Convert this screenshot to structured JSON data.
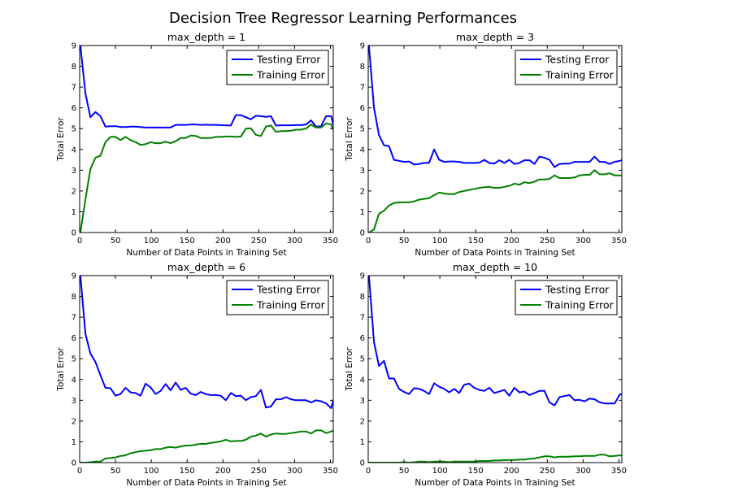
{
  "figure": {
    "suptitle": "Decision Tree Regressor Learning Performances"
  },
  "colors": {
    "testing": "#0000ff",
    "training": "#008000",
    "axes": "#000000",
    "background": "#ffffff"
  },
  "chart_data": [
    {
      "type": "line",
      "title": "max_depth = 1",
      "xlabel": "Number of Data Points in Training Set",
      "ylabel": "Total Error",
      "xlim": [
        0,
        354
      ],
      "ylim": [
        0,
        9
      ],
      "xticks": [
        0,
        50,
        100,
        150,
        200,
        250,
        300,
        350
      ],
      "yticks": [
        0,
        1,
        2,
        3,
        4,
        5,
        6,
        7,
        8,
        9
      ],
      "legend": "top-right",
      "x": [
        1,
        8,
        15,
        22,
        29,
        36,
        43,
        50,
        57,
        64,
        71,
        78,
        85,
        92,
        99,
        106,
        113,
        120,
        127,
        134,
        141,
        148,
        155,
        162,
        169,
        176,
        183,
        190,
        197,
        204,
        211,
        218,
        225,
        232,
        239,
        246,
        253,
        260,
        267,
        274,
        281,
        288,
        295,
        302,
        309,
        316,
        323,
        330,
        337,
        344,
        351,
        354
      ],
      "series": [
        {
          "name": "Testing Error",
          "values": [
            9.0,
            6.7,
            5.55,
            5.8,
            5.6,
            5.1,
            5.12,
            5.12,
            5.08,
            5.08,
            5.1,
            5.1,
            5.08,
            5.05,
            5.05,
            5.06,
            5.05,
            5.05,
            5.05,
            5.18,
            5.18,
            5.18,
            5.2,
            5.2,
            5.18,
            5.19,
            5.18,
            5.18,
            5.17,
            5.16,
            5.15,
            5.65,
            5.65,
            5.55,
            5.45,
            5.62,
            5.6,
            5.57,
            5.6,
            5.15,
            5.16,
            5.16,
            5.16,
            5.17,
            5.17,
            5.2,
            5.4,
            5.1,
            5.12,
            5.6,
            5.6,
            5.2
          ]
        },
        {
          "name": "Training Error",
          "values": [
            0.0,
            1.6,
            3.05,
            3.6,
            3.7,
            4.35,
            4.6,
            4.6,
            4.45,
            4.6,
            4.45,
            4.35,
            4.22,
            4.25,
            4.35,
            4.3,
            4.3,
            4.37,
            4.3,
            4.4,
            4.55,
            4.55,
            4.67,
            4.65,
            4.55,
            4.55,
            4.55,
            4.6,
            4.6,
            4.62,
            4.62,
            4.6,
            4.62,
            5.0,
            5.02,
            4.7,
            4.65,
            5.1,
            5.15,
            4.85,
            4.88,
            4.88,
            4.9,
            4.95,
            4.95,
            5.0,
            5.2,
            5.05,
            5.05,
            5.25,
            5.2,
            4.95
          ]
        }
      ]
    },
    {
      "type": "line",
      "title": "max_depth = 3",
      "xlabel": "Number of Data Points in Training Set",
      "ylabel": "Total Error",
      "xlim": [
        0,
        354
      ],
      "ylim": [
        0,
        9
      ],
      "xticks": [
        0,
        50,
        100,
        150,
        200,
        250,
        300,
        350
      ],
      "yticks": [
        0,
        1,
        2,
        3,
        4,
        5,
        6,
        7,
        8,
        9
      ],
      "legend": "top-right",
      "x": [
        1,
        8,
        15,
        22,
        29,
        36,
        43,
        50,
        57,
        64,
        71,
        78,
        85,
        92,
        99,
        106,
        113,
        120,
        127,
        134,
        141,
        148,
        155,
        162,
        169,
        176,
        183,
        190,
        197,
        204,
        211,
        218,
        225,
        232,
        239,
        246,
        253,
        260,
        267,
        274,
        281,
        288,
        295,
        302,
        309,
        316,
        323,
        330,
        337,
        344,
        351,
        354
      ],
      "series": [
        {
          "name": "Testing Error",
          "values": [
            9.0,
            6.0,
            4.7,
            4.2,
            4.15,
            3.5,
            3.45,
            3.4,
            3.42,
            3.28,
            3.3,
            3.35,
            3.35,
            4.0,
            3.5,
            3.4,
            3.42,
            3.42,
            3.4,
            3.35,
            3.35,
            3.35,
            3.36,
            3.5,
            3.35,
            3.32,
            3.48,
            3.35,
            3.5,
            3.3,
            3.35,
            3.48,
            3.48,
            3.3,
            3.65,
            3.6,
            3.5,
            3.15,
            3.3,
            3.32,
            3.32,
            3.4,
            3.4,
            3.4,
            3.4,
            3.65,
            3.4,
            3.4,
            3.3,
            3.4,
            3.45,
            3.48
          ]
        },
        {
          "name": "Training Error",
          "values": [
            0.0,
            0.15,
            0.9,
            1.05,
            1.3,
            1.42,
            1.45,
            1.45,
            1.45,
            1.5,
            1.58,
            1.62,
            1.65,
            1.8,
            1.92,
            1.88,
            1.85,
            1.85,
            1.95,
            2.0,
            2.05,
            2.1,
            2.15,
            2.18,
            2.2,
            2.15,
            2.15,
            2.2,
            2.25,
            2.35,
            2.3,
            2.42,
            2.38,
            2.45,
            2.55,
            2.55,
            2.58,
            2.75,
            2.62,
            2.62,
            2.62,
            2.65,
            2.75,
            2.78,
            2.78,
            3.0,
            2.8,
            2.8,
            2.85,
            2.75,
            2.75,
            2.75
          ]
        }
      ]
    },
    {
      "type": "line",
      "title": "max_depth = 6",
      "xlabel": "Number of Data Points in Training Set",
      "ylabel": "Total Error",
      "xlim": [
        0,
        354
      ],
      "ylim": [
        0,
        9
      ],
      "xticks": [
        0,
        50,
        100,
        150,
        200,
        250,
        300,
        350
      ],
      "yticks": [
        0,
        1,
        2,
        3,
        4,
        5,
        6,
        7,
        8,
        9
      ],
      "legend": "top-right",
      "x": [
        1,
        8,
        15,
        22,
        29,
        36,
        43,
        50,
        57,
        64,
        71,
        78,
        85,
        92,
        99,
        106,
        113,
        120,
        127,
        134,
        141,
        148,
        155,
        162,
        169,
        176,
        183,
        190,
        197,
        204,
        211,
        218,
        225,
        232,
        239,
        246,
        253,
        260,
        267,
        274,
        281,
        288,
        295,
        302,
        309,
        316,
        323,
        330,
        337,
        344,
        351,
        354
      ],
      "series": [
        {
          "name": "Testing Error",
          "values": [
            9.0,
            6.2,
            5.25,
            4.85,
            4.2,
            3.6,
            3.58,
            3.22,
            3.3,
            3.6,
            3.38,
            3.35,
            3.22,
            3.8,
            3.62,
            3.3,
            3.45,
            3.78,
            3.48,
            3.85,
            3.5,
            3.6,
            3.32,
            3.25,
            3.4,
            3.3,
            3.25,
            3.25,
            3.22,
            3.0,
            3.35,
            3.2,
            3.22,
            3.0,
            3.15,
            3.2,
            3.5,
            2.65,
            2.7,
            3.05,
            3.05,
            3.15,
            3.05,
            3.0,
            3.0,
            3.0,
            2.9,
            3.0,
            2.95,
            2.85,
            2.62,
            3.0
          ]
        },
        {
          "name": "Training Error",
          "values": [
            0.0,
            0.0,
            0.02,
            0.05,
            0.05,
            0.2,
            0.22,
            0.25,
            0.32,
            0.35,
            0.45,
            0.5,
            0.55,
            0.57,
            0.6,
            0.65,
            0.65,
            0.72,
            0.75,
            0.72,
            0.78,
            0.82,
            0.82,
            0.87,
            0.9,
            0.9,
            0.95,
            0.98,
            1.02,
            1.1,
            1.02,
            1.04,
            1.04,
            1.1,
            1.25,
            1.3,
            1.4,
            1.25,
            1.35,
            1.4,
            1.38,
            1.38,
            1.42,
            1.45,
            1.5,
            1.5,
            1.4,
            1.55,
            1.55,
            1.42,
            1.5,
            1.55
          ]
        }
      ]
    },
    {
      "type": "line",
      "title": "max_depth = 10",
      "xlabel": "Number of Data Points in Training Set",
      "ylabel": "Total Error",
      "xlim": [
        0,
        354
      ],
      "ylim": [
        0,
        9
      ],
      "xticks": [
        0,
        50,
        100,
        150,
        200,
        250,
        300,
        350
      ],
      "yticks": [
        0,
        1,
        2,
        3,
        4,
        5,
        6,
        7,
        8,
        9
      ],
      "legend": "top-right",
      "x": [
        1,
        8,
        15,
        22,
        29,
        36,
        43,
        50,
        57,
        64,
        71,
        78,
        85,
        92,
        99,
        106,
        113,
        120,
        127,
        134,
        141,
        148,
        155,
        162,
        169,
        176,
        183,
        190,
        197,
        204,
        211,
        218,
        225,
        232,
        239,
        246,
        253,
        260,
        267,
        274,
        281,
        288,
        295,
        302,
        309,
        316,
        323,
        330,
        337,
        344,
        351,
        354
      ],
      "series": [
        {
          "name": "Testing Error",
          "values": [
            9.0,
            5.8,
            4.65,
            4.9,
            4.05,
            4.05,
            3.55,
            3.4,
            3.3,
            3.58,
            3.55,
            3.45,
            3.3,
            3.82,
            3.65,
            3.55,
            3.38,
            3.55,
            3.35,
            3.75,
            3.8,
            3.6,
            3.5,
            3.45,
            3.6,
            3.35,
            3.42,
            3.5,
            3.22,
            3.6,
            3.38,
            3.42,
            3.25,
            3.35,
            3.45,
            3.45,
            2.9,
            2.75,
            3.15,
            3.2,
            3.25,
            3.0,
            3.02,
            2.95,
            3.08,
            3.05,
            2.9,
            2.85,
            2.85,
            2.85,
            3.28,
            3.3
          ]
        },
        {
          "name": "Training Error",
          "values": [
            0.0,
            0.0,
            0.0,
            0.0,
            0.0,
            0.0,
            0.0,
            0.02,
            0.0,
            0.02,
            0.05,
            0.05,
            0.02,
            0.05,
            0.05,
            0.05,
            0.02,
            0.05,
            0.05,
            0.05,
            0.05,
            0.05,
            0.08,
            0.08,
            0.08,
            0.1,
            0.1,
            0.12,
            0.12,
            0.12,
            0.15,
            0.15,
            0.18,
            0.2,
            0.25,
            0.3,
            0.3,
            0.25,
            0.28,
            0.28,
            0.28,
            0.3,
            0.3,
            0.32,
            0.32,
            0.32,
            0.38,
            0.38,
            0.3,
            0.32,
            0.35,
            0.35
          ]
        }
      ]
    }
  ]
}
